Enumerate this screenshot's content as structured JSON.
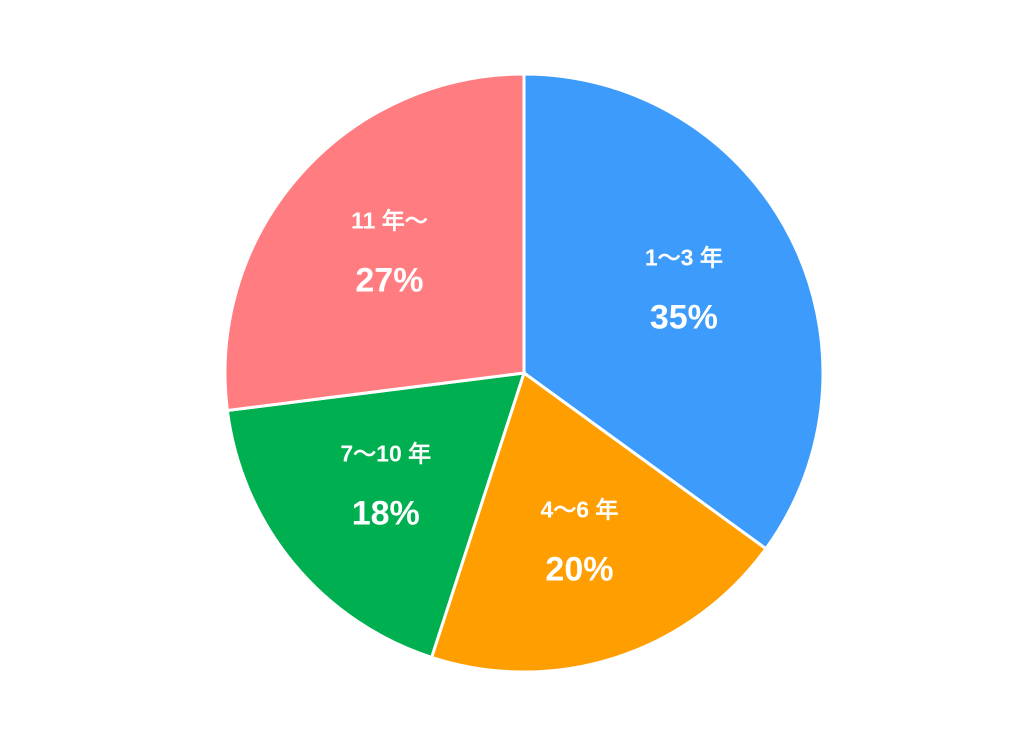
{
  "chart_data": {
    "type": "pie",
    "categories": [
      "1～3 年",
      "4～6 年",
      "7～10 年",
      "11 年～"
    ],
    "values": [
      35,
      20,
      18,
      27
    ],
    "value_labels": [
      "35%",
      "20%",
      "18%",
      "27%"
    ],
    "colors": [
      "#3d9bfc",
      "#ff9e00",
      "#00b050",
      "#ff7c80"
    ]
  }
}
